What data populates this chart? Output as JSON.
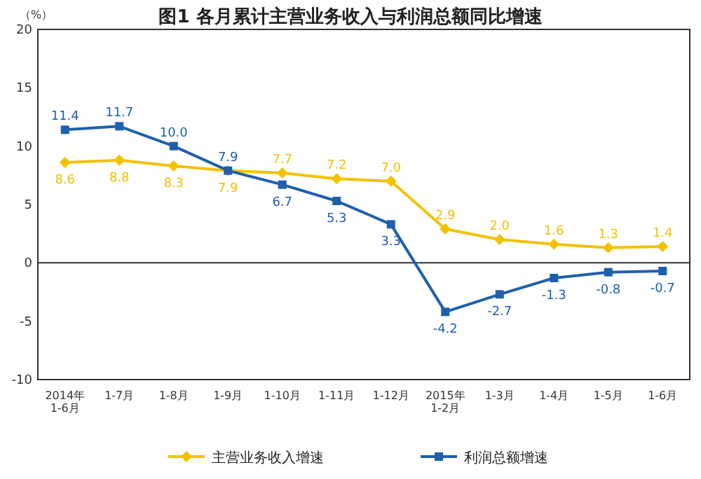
{
  "chart_data": {
    "type": "line",
    "title": "图1  各月累计主营业务收入与利润总额同比增速",
    "ylabel": "（%）",
    "categories": [
      "2014年\n1-6月",
      "1-7月",
      "1-8月",
      "1-9月",
      "1-10月",
      "1-11月",
      "1-12月",
      "2015年\n1-2月",
      "1-3月",
      "1-4月",
      "1-5月",
      "1-6月"
    ],
    "series": [
      {
        "name": "主营业务收入增速",
        "color": "#f2c200",
        "marker": "diamond",
        "values": [
          8.6,
          8.8,
          8.3,
          7.9,
          7.7,
          7.2,
          7.0,
          2.9,
          2.0,
          1.6,
          1.3,
          1.4
        ],
        "value_labels": [
          "8.6",
          "8.8",
          "8.3",
          "7.9",
          "7.7",
          "7.2",
          "7.0",
          "2.9",
          "2.0",
          "1.6",
          "1.3",
          "1.4"
        ]
      },
      {
        "name": "利润总额增速",
        "color": "#1f5fae",
        "marker": "square",
        "values": [
          11.4,
          11.7,
          10.0,
          7.9,
          6.7,
          5.3,
          3.3,
          -4.2,
          -2.7,
          -1.3,
          -0.8,
          -0.7
        ],
        "value_labels": [
          "11.4",
          "11.7",
          "10.0",
          "7.9",
          "6.7",
          "5.3",
          "3.3",
          "-4.2",
          "-2.7",
          "-1.3",
          "-0.8",
          "-0.7"
        ]
      }
    ],
    "ylim": [
      -10,
      20
    ],
    "yticks": [
      -10,
      -5,
      0,
      5,
      10,
      15,
      20
    ],
    "ref_lines": [
      {
        "axis": "y",
        "value": 0,
        "color": "#333333"
      }
    ],
    "legend": "bottom",
    "line_style": "solid"
  }
}
